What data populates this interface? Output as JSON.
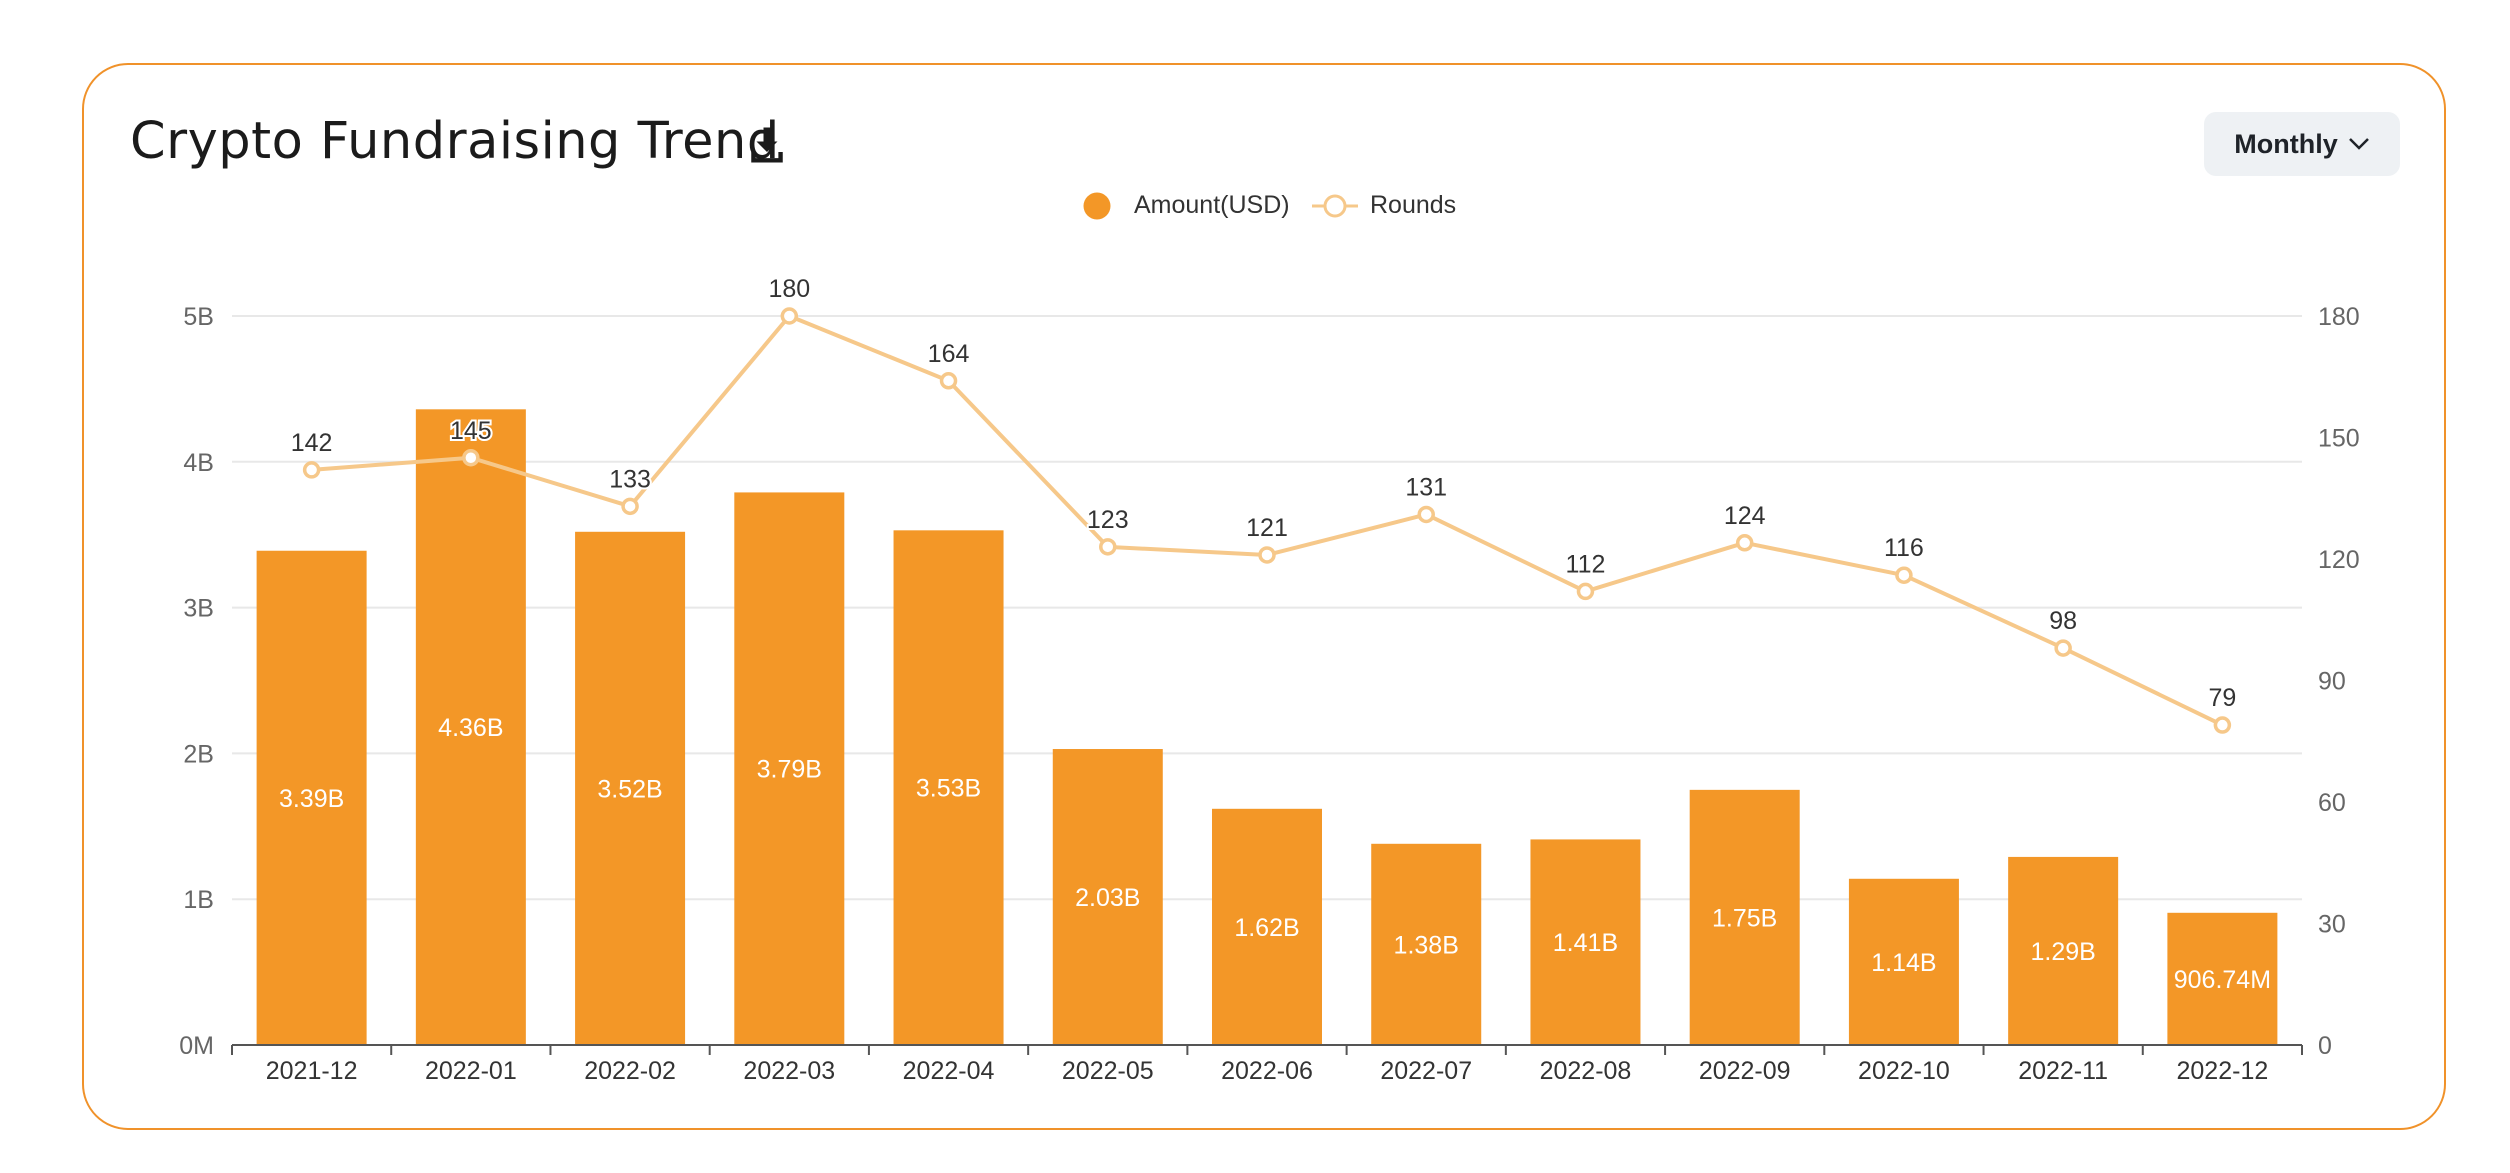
{
  "header": {
    "title": "Crypto Fundraising Trend",
    "download_icon": "download-icon",
    "period_selector": {
      "selected": "Monthly",
      "icon": "chevron-down-icon"
    }
  },
  "colors": {
    "bar": "#F39727",
    "line": "#F6C88A",
    "border": "#F0922A",
    "grid": "#E8E8E8"
  },
  "chart_data": {
    "type": "bar",
    "categories": [
      "2021-12",
      "2022-01",
      "2022-02",
      "2022-03",
      "2022-04",
      "2022-05",
      "2022-06",
      "2022-07",
      "2022-08",
      "2022-09",
      "2022-10",
      "2022-11",
      "2022-12"
    ],
    "series": [
      {
        "name": "Amount(USD)",
        "type": "bar",
        "axis": "left",
        "values": [
          3.39,
          4.36,
          3.52,
          3.79,
          3.53,
          2.03,
          1.62,
          1.38,
          1.41,
          1.75,
          1.14,
          1.29,
          0.90674
        ],
        "unit": "B",
        "labels": [
          "3.39B",
          "4.36B",
          "3.52B",
          "3.79B",
          "3.53B",
          "2.03B",
          "1.62B",
          "1.38B",
          "1.41B",
          "1.75B",
          "1.14B",
          "1.29B",
          "906.74M"
        ]
      },
      {
        "name": "Rounds",
        "type": "line",
        "axis": "right",
        "values": [
          142,
          145,
          133,
          180,
          164,
          123,
          121,
          131,
          112,
          124,
          116,
          98,
          79
        ],
        "labels": [
          "142",
          "145",
          "133",
          "180",
          "164",
          "123",
          "121",
          "131",
          "112",
          "124",
          "116",
          "98",
          "79"
        ]
      }
    ],
    "y_left": {
      "ticks": [
        "0M",
        "1B",
        "2B",
        "3B",
        "4B",
        "5B"
      ],
      "range": [
        0,
        5
      ]
    },
    "y_right": {
      "ticks": [
        "0",
        "30",
        "60",
        "90",
        "120",
        "150",
        "180"
      ],
      "range": [
        0,
        180
      ]
    },
    "legend_position": "top-center",
    "grid": true
  }
}
